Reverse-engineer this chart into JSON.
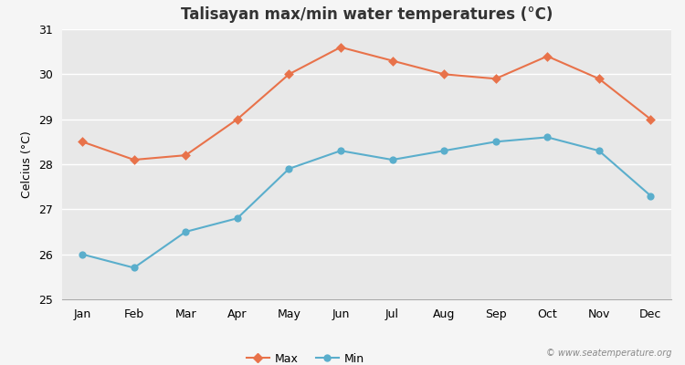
{
  "months": [
    "Jan",
    "Feb",
    "Mar",
    "Apr",
    "May",
    "Jun",
    "Jul",
    "Aug",
    "Sep",
    "Oct",
    "Nov",
    "Dec"
  ],
  "max_temps": [
    28.5,
    28.1,
    28.2,
    29.0,
    30.0,
    30.6,
    30.3,
    30.0,
    29.9,
    30.4,
    29.9,
    29.0
  ],
  "min_temps": [
    26.0,
    25.7,
    26.5,
    26.8,
    27.9,
    28.3,
    28.1,
    28.3,
    28.5,
    28.6,
    28.3,
    27.3
  ],
  "max_color": "#e8724a",
  "min_color": "#5aaecc",
  "title": "Talisayan max/min water temperatures (°C)",
  "ylabel": "Celcius (°C)",
  "ylim": [
    25,
    31
  ],
  "yticks": [
    25,
    26,
    27,
    28,
    29,
    30,
    31
  ],
  "fig_bg_color": "#f5f5f5",
  "plot_bg_color": "#e8e8e8",
  "watermark": "© www.seatemperature.org",
  "legend_max": "Max",
  "legend_min": "Min",
  "title_fontsize": 12,
  "axis_fontsize": 9,
  "tick_fontsize": 9
}
